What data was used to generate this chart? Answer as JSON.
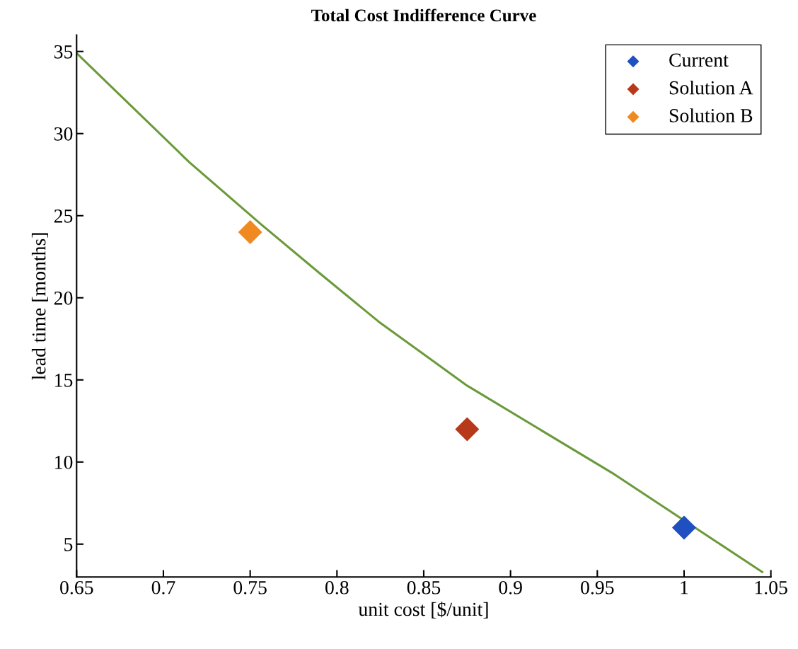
{
  "chart_data": {
    "type": "scatter",
    "title": "Total Cost Indifference Curve",
    "xlabel": "unit cost [$/unit]",
    "ylabel": "lead time [months]",
    "xlim": [
      0.65,
      1.05
    ],
    "xticks": [
      {
        "value": 0.65,
        "label": "0.65"
      },
      {
        "value": 0.7,
        "label": "0.7"
      },
      {
        "value": 0.75,
        "label": "0.75"
      },
      {
        "value": 0.8,
        "label": "0.8"
      },
      {
        "value": 0.85,
        "label": "0.85"
      },
      {
        "value": 0.9,
        "label": "0.9"
      },
      {
        "value": 0.95,
        "label": "0.95"
      },
      {
        "value": 1,
        "label": "1"
      },
      {
        "value": 1.05,
        "label": "1.05"
      }
    ],
    "ylim": [
      3,
      36
    ],
    "yticks": [
      5,
      10,
      15,
      20,
      25,
      30,
      35
    ],
    "legend": "top right",
    "grid": false,
    "series": [
      {
        "name": "Current",
        "color": "#1f4fc0",
        "marker": "diamond",
        "x": [
          1.0
        ],
        "values": [
          6
        ]
      },
      {
        "name": "Solution A",
        "color": "#b8391a",
        "marker": "diamond",
        "x": [
          0.875
        ],
        "values": [
          12
        ]
      },
      {
        "name": "Solution B",
        "color": "#f08a20",
        "marker": "diamond",
        "x": [
          0.75
        ],
        "values": [
          24
        ]
      },
      {
        "type": "line",
        "marker": "none",
        "color": "#6b9a3a",
        "x": [
          0.65,
          0.715,
          0.756,
          0.79,
          0.824,
          0.875,
          0.96,
          1.045
        ],
        "values": [
          34.9,
          28.25,
          24.5,
          21.5,
          18.55,
          14.65,
          9.24,
          3.3
        ]
      }
    ]
  }
}
